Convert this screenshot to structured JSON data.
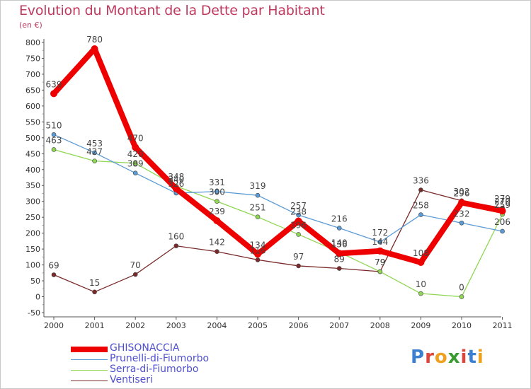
{
  "title": "Evolution du Montant de la Dette par Habitant",
  "unit_label": "(en €)",
  "logo": {
    "letters": [
      "P",
      "r",
      "o",
      "x",
      "i",
      "t",
      "i"
    ],
    "colors": [
      "#3a7fd0",
      "#e0453a",
      "#f0a020",
      "#3a9a30",
      "#e0453a",
      "#3a7fd0",
      "#f0a020"
    ]
  },
  "chart_data": {
    "type": "line",
    "x": [
      "2000",
      "2001",
      "2002",
      "2003",
      "2004",
      "2005",
      "2006",
      "2007",
      "2008",
      "2009",
      "2010",
      "2011"
    ],
    "ylim": [
      -50,
      800
    ],
    "yticks": [
      "-50",
      "0",
      "50",
      "100",
      "150",
      "200",
      "250",
      "300",
      "350",
      "400",
      "450",
      "500",
      "550",
      "600",
      "650",
      "700",
      "750",
      "800"
    ],
    "grid": false,
    "legend_position": "bottom-left",
    "series": [
      {
        "name": "GHISONACCIA",
        "color": "#ee0000",
        "values": [
          639,
          780,
          470,
          340,
          239,
          134,
          238,
          136,
          144,
          108,
          296,
          270
        ],
        "labels": [
          "639",
          "780",
          "470",
          "340",
          "239",
          "134",
          "238",
          "136",
          "144",
          "108",
          "296",
          "270"
        ]
      },
      {
        "name": "Prunelli-di-Fiumorbo",
        "color": "#5b9bd5",
        "values": [
          510,
          453,
          389,
          326,
          331,
          319,
          257,
          216,
          172,
          258,
          232,
          206
        ],
        "labels": [
          "510",
          "453",
          "389",
          "326",
          "331",
          "319",
          "257",
          "216",
          "172",
          "258",
          "232",
          "206"
        ]
      },
      {
        "name": "Serra-di-Fiumorbo",
        "color": "#8fd654",
        "values": [
          463,
          427,
          420,
          348,
          300,
          251,
          196,
          140,
          79,
          10,
          0,
          259
        ],
        "labels": [
          "463",
          "427",
          "420",
          "348",
          "300",
          "251",
          "196",
          "140",
          "79",
          "10",
          "0",
          "259"
        ]
      },
      {
        "name": "Ventiseri",
        "color": "#7a2a2a",
        "values": [
          69,
          15,
          70,
          160,
          142,
          116,
          97,
          89,
          79,
          336,
          302,
          279
        ],
        "labels": [
          "69",
          "15",
          "70",
          "160",
          "142",
          "116",
          "97",
          "89",
          "79",
          "336",
          "302",
          "279"
        ]
      }
    ]
  }
}
